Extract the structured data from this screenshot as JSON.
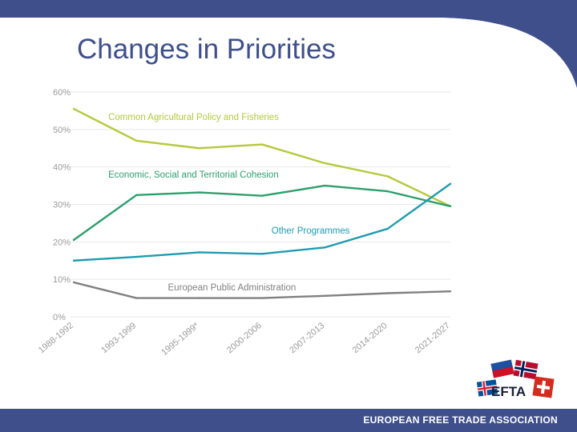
{
  "slide": {
    "title": "Changes in Priorities"
  },
  "colors": {
    "brand_blue": "#3f4f8c",
    "grid": "#e6e6e6",
    "axis_text": "#9a9a9a"
  },
  "footer": {
    "text": "EUROPEAN FREE TRADE ASSOCIATION"
  },
  "logo": {
    "text": "EFTA"
  },
  "chart_data": {
    "type": "line",
    "title": "",
    "categories": [
      "1988-1992",
      "1993-1999",
      "1995-1999*",
      "2000-2006",
      "2007-2013",
      "2014-2020",
      "2021-2027"
    ],
    "yticks": [
      "0%",
      "10%",
      "20%",
      "30%",
      "40%",
      "50%",
      "60%"
    ],
    "ylim": [
      0,
      60
    ],
    "grid": true,
    "series": [
      {
        "name": "Common Agricultural Policy and Fisheries",
        "color": "#b5c93a",
        "values": [
          55.5,
          47,
          45,
          46,
          41,
          37.5,
          29.5
        ]
      },
      {
        "name": "Economic, Social and Territorial Cohesion",
        "color": "#2e9e6e",
        "values": [
          20.5,
          32.5,
          33.2,
          32.3,
          35,
          33.5,
          29.5
        ]
      },
      {
        "name": "Other Programmes",
        "color": "#1f9bb0",
        "values": [
          15,
          16,
          17.2,
          16.8,
          18.5,
          23.5,
          35.5
        ]
      },
      {
        "name": "European Public Administration",
        "color": "#808080",
        "values": [
          9.2,
          5,
          5,
          5,
          5.6,
          6.3,
          6.8
        ]
      }
    ]
  }
}
